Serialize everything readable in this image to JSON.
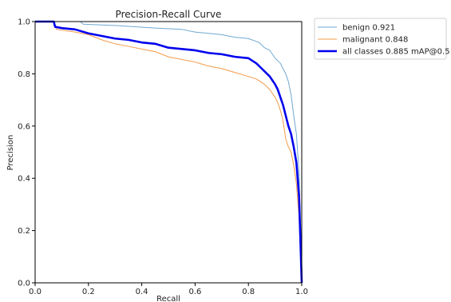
{
  "chart_data": {
    "type": "line",
    "title": "Precision-Recall Curve",
    "xlabel": "Recall",
    "ylabel": "Precision",
    "xlim": [
      0,
      1
    ],
    "ylim": [
      0,
      1
    ],
    "xticks": [
      "0.0",
      "0.2",
      "0.4",
      "0.6",
      "0.8",
      "1.0"
    ],
    "yticks": [
      "0.0",
      "0.2",
      "0.4",
      "0.6",
      "0.8",
      "1.0"
    ],
    "grid": false,
    "legend_position": "outside-top-right",
    "series": [
      {
        "name": "benign 0.921",
        "color": "#6fa8d0",
        "line_width": "thin",
        "x": [
          0.0,
          0.1,
          0.17,
          0.18,
          0.3,
          0.45,
          0.55,
          0.6,
          0.65,
          0.7,
          0.75,
          0.8,
          0.84,
          0.86,
          0.88,
          0.9,
          0.91,
          0.92,
          0.93,
          0.94,
          0.95,
          0.96,
          0.97,
          0.98,
          0.99,
          1.0
        ],
        "y": [
          1.0,
          1.0,
          1.0,
          0.99,
          0.985,
          0.975,
          0.97,
          0.96,
          0.955,
          0.95,
          0.94,
          0.935,
          0.92,
          0.9,
          0.89,
          0.86,
          0.85,
          0.84,
          0.82,
          0.8,
          0.77,
          0.72,
          0.64,
          0.57,
          0.42,
          0.0
        ]
      },
      {
        "name": "malignant 0.848",
        "color": "#f39a4a",
        "line_width": "thin",
        "x": [
          0.0,
          0.07,
          0.08,
          0.15,
          0.2,
          0.25,
          0.3,
          0.35,
          0.4,
          0.45,
          0.5,
          0.55,
          0.6,
          0.65,
          0.7,
          0.75,
          0.8,
          0.83,
          0.86,
          0.88,
          0.9,
          0.91,
          0.92,
          0.93,
          0.94,
          0.95,
          0.96,
          0.97,
          0.98,
          0.99,
          1.0
        ],
        "y": [
          1.0,
          1.0,
          0.97,
          0.96,
          0.95,
          0.93,
          0.915,
          0.905,
          0.895,
          0.885,
          0.865,
          0.855,
          0.845,
          0.83,
          0.82,
          0.805,
          0.79,
          0.78,
          0.76,
          0.74,
          0.71,
          0.69,
          0.66,
          0.62,
          0.55,
          0.52,
          0.5,
          0.45,
          0.38,
          0.25,
          0.0
        ]
      },
      {
        "name": "all classes 0.885 mAP@0.5",
        "color": "#0000ee",
        "line_width": "thick",
        "x": [
          0.0,
          0.07,
          0.075,
          0.1,
          0.15,
          0.2,
          0.25,
          0.3,
          0.35,
          0.4,
          0.45,
          0.5,
          0.55,
          0.6,
          0.65,
          0.7,
          0.75,
          0.8,
          0.83,
          0.86,
          0.88,
          0.9,
          0.91,
          0.92,
          0.93,
          0.94,
          0.95,
          0.96,
          0.97,
          0.98,
          0.99,
          1.0
        ],
        "y": [
          1.0,
          1.0,
          0.98,
          0.975,
          0.97,
          0.955,
          0.945,
          0.935,
          0.93,
          0.92,
          0.915,
          0.9,
          0.895,
          0.89,
          0.88,
          0.875,
          0.865,
          0.86,
          0.84,
          0.81,
          0.79,
          0.76,
          0.74,
          0.71,
          0.68,
          0.64,
          0.6,
          0.57,
          0.52,
          0.46,
          0.33,
          0.0
        ]
      }
    ]
  }
}
